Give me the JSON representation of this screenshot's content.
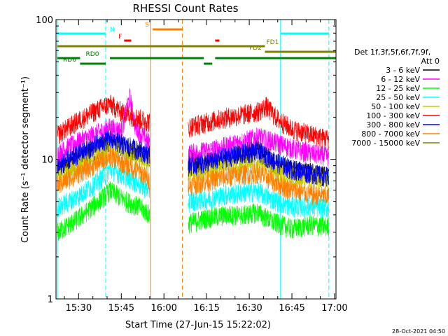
{
  "footer": {
    "timestamp": "28-Oct-2021 04:50"
  },
  "flags": {
    "labels": [
      "N",
      "F",
      "S",
      "FD1",
      "FD2",
      "RD0",
      "RD6"
    ],
    "colors": {
      "N": "#00ffff",
      "F": "#ff0000",
      "S": "#ff8000",
      "FD": "#808000",
      "RD": "#008000"
    }
  },
  "chart_data": {
    "type": "line",
    "title": "RHESSI Count Rates",
    "xlabel": "Start Time (27-Jun-15 15:22:02)",
    "ylabel": "Count Rate (s⁻¹ detector segment⁻¹)",
    "yscale": "log",
    "ylim": [
      1,
      100
    ],
    "xlim": [
      "15:22:02",
      "17:00:30"
    ],
    "x_ticks": [
      "15:30",
      "15:45",
      "16:00",
      "16:15",
      "16:30",
      "16:45",
      "17:00"
    ],
    "y_ticks": [
      "1",
      "10",
      "100"
    ],
    "grid": false,
    "legend": {
      "title": [
        "Det 1f,3f,5f,6f,7f,9f,",
        "Att 0"
      ],
      "position": "right"
    },
    "gaps": [
      [
        "15:55:20",
        "16:08:20"
      ]
    ],
    "vlines": [
      {
        "t": "15:22:30",
        "color": "#00ffff",
        "style": "solid"
      },
      {
        "t": "15:39:30",
        "color": "#00ffff",
        "style": "dashed"
      },
      {
        "t": "15:55:20",
        "color": "#ff8000",
        "style": "solid"
      },
      {
        "t": "16:06:30",
        "color": "#ff8000",
        "style": "dashed"
      },
      {
        "t": "16:41:00",
        "color": "#00ffff",
        "style": "solid"
      },
      {
        "t": "16:58:00",
        "color": "#00ffff",
        "style": "dashed"
      }
    ],
    "series": [
      {
        "name": "3 - 6 keV",
        "color": "#000000",
        "points": [
          [
            "15:22:30",
            8.5
          ],
          [
            "15:30:00",
            10.5
          ],
          [
            "15:37:00",
            12.0
          ],
          [
            "15:41:00",
            13.5
          ],
          [
            "15:47:00",
            12.0
          ],
          [
            "15:52:00",
            11.0
          ],
          [
            "15:55:00",
            10.5
          ],
          [
            "16:08:30",
            10.0
          ],
          [
            "16:15:00",
            9.5
          ],
          [
            "16:22:00",
            10.0
          ],
          [
            "16:28:00",
            11.5
          ],
          [
            "16:33:00",
            12.0
          ],
          [
            "16:38:00",
            9.5
          ],
          [
            "16:45:00",
            8.5
          ],
          [
            "16:52:00",
            8.0
          ],
          [
            "16:58:00",
            7.5
          ]
        ]
      },
      {
        "name": "6 - 12 keV",
        "color": "#ff00ff",
        "points": [
          [
            "15:22:30",
            11.0
          ],
          [
            "15:30:00",
            13.5
          ],
          [
            "15:37:00",
            15.5
          ],
          [
            "15:41:00",
            17.0
          ],
          [
            "15:45:00",
            16.0
          ],
          [
            "15:48:00",
            28.0
          ],
          [
            "15:50:00",
            17.0
          ],
          [
            "15:55:00",
            13.0
          ],
          [
            "16:08:30",
            11.0
          ],
          [
            "16:15:00",
            11.5
          ],
          [
            "16:22:00",
            12.5
          ],
          [
            "16:28:00",
            13.5
          ],
          [
            "16:33:00",
            14.5
          ],
          [
            "16:38:00",
            13.5
          ],
          [
            "16:45:00",
            12.0
          ],
          [
            "16:52:00",
            11.0
          ],
          [
            "16:58:00",
            10.5
          ]
        ]
      },
      {
        "name": "12 - 25 keV",
        "color": "#00ff00",
        "points": [
          [
            "15:22:30",
            3.0
          ],
          [
            "15:30:00",
            3.8
          ],
          [
            "15:37:00",
            5.0
          ],
          [
            "15:41:00",
            6.0
          ],
          [
            "15:47:00",
            5.0
          ],
          [
            "15:52:00",
            4.5
          ],
          [
            "15:55:00",
            4.0
          ],
          [
            "16:08:30",
            3.5
          ],
          [
            "16:15:00",
            3.8
          ],
          [
            "16:22:00",
            4.0
          ],
          [
            "16:28:00",
            4.0
          ],
          [
            "16:33:00",
            4.2
          ],
          [
            "16:38:00",
            3.6
          ],
          [
            "16:45:00",
            3.2
          ],
          [
            "16:52:00",
            3.4
          ],
          [
            "16:58:00",
            3.3
          ]
        ]
      },
      {
        "name": "25 - 50 keV",
        "color": "#00ffff",
        "points": [
          [
            "15:22:30",
            4.5
          ],
          [
            "15:30:00",
            5.5
          ],
          [
            "15:37:00",
            7.0
          ],
          [
            "15:41:00",
            8.5
          ],
          [
            "15:47:00",
            7.5
          ],
          [
            "15:52:00",
            6.5
          ],
          [
            "15:55:00",
            6.0
          ],
          [
            "16:08:30",
            5.0
          ],
          [
            "16:15:00",
            5.2
          ],
          [
            "16:22:00",
            5.6
          ],
          [
            "16:28:00",
            5.8
          ],
          [
            "16:33:00",
            5.9
          ],
          [
            "16:38:00",
            5.2
          ],
          [
            "16:45:00",
            4.6
          ],
          [
            "16:52:00",
            4.6
          ],
          [
            "16:58:00",
            4.5
          ]
        ]
      },
      {
        "name": "50 - 100 keV",
        "color": "#c8c800",
        "points": [
          [
            "15:22:30",
            7.5
          ],
          [
            "15:30:00",
            9.0
          ],
          [
            "15:37:00",
            11.0
          ],
          [
            "15:41:00",
            12.5
          ],
          [
            "15:47:00",
            11.0
          ],
          [
            "15:52:00",
            10.0
          ],
          [
            "15:55:00",
            9.5
          ],
          [
            "16:08:30",
            8.0
          ],
          [
            "16:15:00",
            8.5
          ],
          [
            "16:22:00",
            9.0
          ],
          [
            "16:28:00",
            9.2
          ],
          [
            "16:33:00",
            9.4
          ],
          [
            "16:38:00",
            8.5
          ],
          [
            "16:45:00",
            7.5
          ],
          [
            "16:52:00",
            7.4
          ],
          [
            "16:58:00",
            7.2
          ]
        ]
      },
      {
        "name": "100 - 300 keV",
        "color": "#ff0000",
        "points": [
          [
            "15:22:30",
            15.0
          ],
          [
            "15:30:00",
            19.0
          ],
          [
            "15:37:00",
            23.0
          ],
          [
            "15:41:00",
            25.0
          ],
          [
            "15:45:00",
            22.0
          ],
          [
            "15:50:00",
            20.0
          ],
          [
            "15:55:00",
            18.5
          ],
          [
            "16:08:30",
            17.0
          ],
          [
            "16:15:00",
            18.5
          ],
          [
            "16:22:00",
            20.0
          ],
          [
            "16:28:00",
            21.0
          ],
          [
            "16:33:00",
            22.0
          ],
          [
            "16:36:00",
            24.0
          ],
          [
            "16:40:00",
            19.5
          ],
          [
            "16:45:00",
            16.5
          ],
          [
            "16:52:00",
            15.0
          ],
          [
            "16:58:00",
            14.0
          ]
        ]
      },
      {
        "name": "300 - 800 keV",
        "color": "#0000ff",
        "points": [
          [
            "15:22:30",
            9.0
          ],
          [
            "15:30:00",
            11.0
          ],
          [
            "15:37:00",
            13.0
          ],
          [
            "15:41:00",
            14.0
          ],
          [
            "15:47:00",
            12.5
          ],
          [
            "15:52:00",
            11.5
          ],
          [
            "15:55:00",
            11.0
          ],
          [
            "16:08:30",
            9.0
          ],
          [
            "16:15:00",
            9.5
          ],
          [
            "16:22:00",
            10.5
          ],
          [
            "16:28:00",
            11.0
          ],
          [
            "16:33:00",
            11.5
          ],
          [
            "16:38:00",
            10.0
          ],
          [
            "16:45:00",
            8.5
          ],
          [
            "16:52:00",
            8.0
          ],
          [
            "16:58:00",
            7.5
          ]
        ]
      },
      {
        "name": "800 - 7000 keV",
        "color": "#ff8000",
        "points": [
          [
            "15:22:30",
            6.5
          ],
          [
            "15:30:00",
            8.0
          ],
          [
            "15:37:00",
            9.5
          ],
          [
            "15:41:00",
            10.5
          ],
          [
            "15:47:00",
            9.0
          ],
          [
            "15:52:00",
            8.0
          ],
          [
            "15:55:00",
            7.0
          ],
          [
            "16:08:30",
            6.5
          ],
          [
            "16:15:00",
            7.0
          ],
          [
            "16:22:00",
            7.5
          ],
          [
            "16:28:00",
            7.8
          ],
          [
            "16:33:00",
            8.0
          ],
          [
            "16:38:00",
            7.0
          ],
          [
            "16:45:00",
            6.0
          ],
          [
            "16:52:00",
            5.6
          ],
          [
            "16:58:00",
            5.4
          ]
        ]
      },
      {
        "name": "7000 - 15000 keV",
        "color": "#808000",
        "points": []
      }
    ],
    "flag_bars": [
      {
        "label": "N",
        "color": "#00ffff",
        "segments": [
          [
            "15:22:30",
            "15:39:30"
          ],
          [
            "16:41:00",
            "16:58:00"
          ]
        ],
        "label_at": "15:41:00"
      },
      {
        "label": "F",
        "color": "#ff0000",
        "segments": [
          [
            "15:46:00",
            "15:48:30"
          ],
          [
            "16:18:00",
            "16:19:30"
          ]
        ],
        "label_at": "15:44:00"
      },
      {
        "label": "S",
        "color": "#ff8000",
        "segments": [
          [
            "15:56:00",
            "16:06:30"
          ]
        ],
        "label_at": "15:53:20"
      },
      {
        "label": "FD1",
        "color": "#808000",
        "segments": [
          [
            "15:22:30",
            "16:35:30"
          ]
        ],
        "label_at": "16:36:00"
      },
      {
        "label": "FD2",
        "color": "#808000",
        "segments": [
          [
            "16:35:30",
            "17:00:30"
          ]
        ],
        "label_at": "16:30:00"
      },
      {
        "label": "RD0",
        "color": "#008000",
        "segments": [
          [
            "15:22:30",
            "15:30:30"
          ],
          [
            "15:41:00",
            "16:14:00"
          ],
          [
            "16:18:00",
            "17:00:30"
          ]
        ],
        "label_at": "15:32:30"
      },
      {
        "label": "RD6",
        "color": "#008000",
        "segments": [
          [
            "15:30:30",
            "15:39:30"
          ],
          [
            "16:14:00",
            "16:17:00"
          ]
        ],
        "label_at": "15:24:30"
      }
    ]
  }
}
